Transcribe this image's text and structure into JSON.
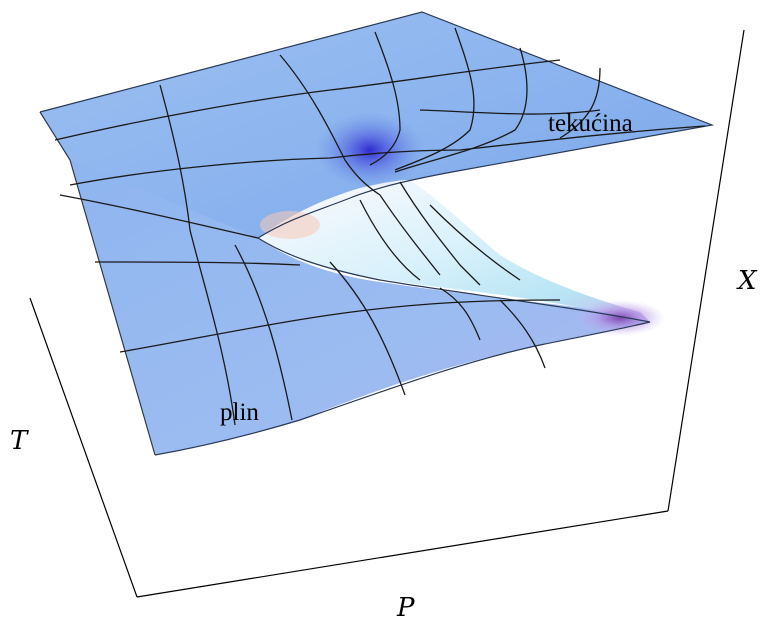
{
  "axes": {
    "x_label": "X",
    "t_label": "T",
    "p_label": "P"
  },
  "regions": {
    "liquid_label": "tekućina",
    "gas_label": "plin"
  },
  "colors": {
    "surface_main": "#8fb6ef",
    "surface_light": "#a9c8f5",
    "cusp_dark": "#3a36d6",
    "fold_light": "#e6f5fc",
    "fold_warm": "#f4cfc0",
    "fold_purple": "#b79ae8"
  }
}
